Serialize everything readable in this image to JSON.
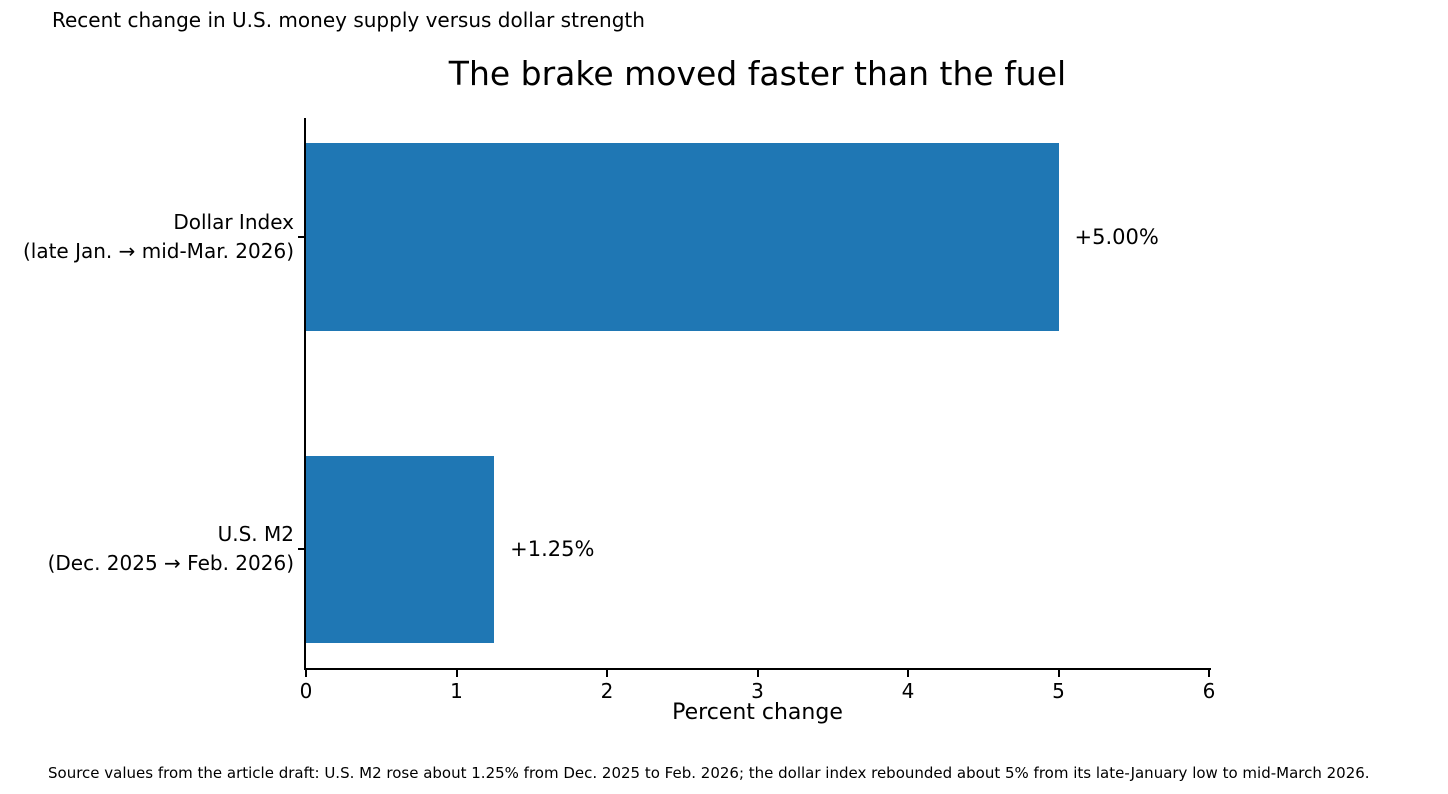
{
  "annotation_top": "Recent change in U.S. money supply versus dollar strength",
  "caption": "Source values from the article draft: U.S. M2 rose about 1.25% from Dec. 2025 to Feb. 2026; the dollar index rebounded about 5% from its late-January low to mid-March 2026.",
  "chart_data": {
    "type": "bar",
    "orientation": "horizontal",
    "title": "The brake moved faster than the fuel",
    "xlabel": "Percent change",
    "ylabel": "",
    "xlim": [
      0,
      6
    ],
    "xticks": [
      0,
      1,
      2,
      3,
      4,
      5,
      6
    ],
    "grid": false,
    "legend": false,
    "bar_color": "#1f77b4",
    "axis_color": "#000000",
    "categories": [
      {
        "label": "Dollar Index",
        "sublabel": "(late Jan. → mid-Mar. 2026)"
      },
      {
        "label": "U.S. M2",
        "sublabel": "(Dec. 2025 → Feb. 2026)"
      }
    ],
    "values": [
      5.0,
      1.25
    ],
    "value_labels": [
      "+5.00%",
      "+1.25%"
    ]
  }
}
